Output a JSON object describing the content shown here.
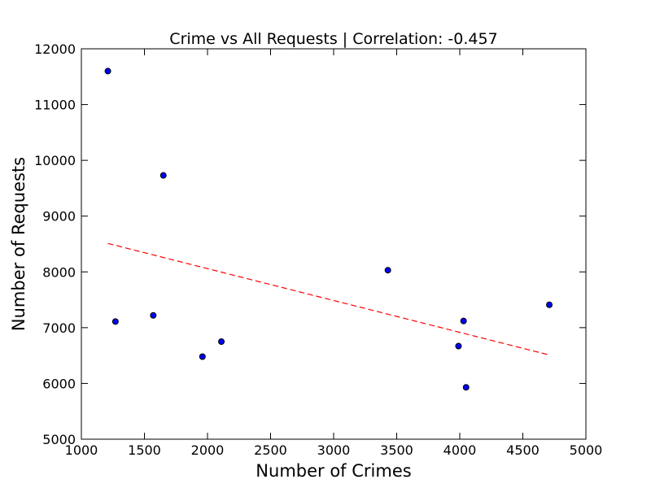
{
  "chart_data": {
    "type": "scatter",
    "title": "Crime vs All Requests | Correlation: -0.457",
    "xlabel": "Number of Crimes",
    "ylabel": "Number of Requests",
    "xlim": [
      1000,
      5000
    ],
    "ylim": [
      5000,
      12000
    ],
    "x_ticks": [
      1000,
      1500,
      2000,
      2500,
      3000,
      3500,
      4000,
      4500,
      5000
    ],
    "y_ticks": [
      5000,
      6000,
      7000,
      8000,
      9000,
      10000,
      11000,
      12000
    ],
    "grid": false,
    "series": [
      {
        "kind": "points",
        "color": "#0000ff",
        "points": [
          {
            "x": 1210,
            "y": 11600
          },
          {
            "x": 1270,
            "y": 7110
          },
          {
            "x": 1570,
            "y": 7220
          },
          {
            "x": 1650,
            "y": 9730
          },
          {
            "x": 1960,
            "y": 6480
          },
          {
            "x": 2110,
            "y": 6750
          },
          {
            "x": 3430,
            "y": 8030
          },
          {
            "x": 3990,
            "y": 6670
          },
          {
            "x": 4030,
            "y": 7120
          },
          {
            "x": 4050,
            "y": 5930
          },
          {
            "x": 4710,
            "y": 7410
          }
        ]
      },
      {
        "kind": "trend",
        "color": "#ff0000",
        "style": "dashed",
        "x": [
          1210,
          4710
        ],
        "y": [
          8510,
          6510
        ]
      }
    ]
  }
}
